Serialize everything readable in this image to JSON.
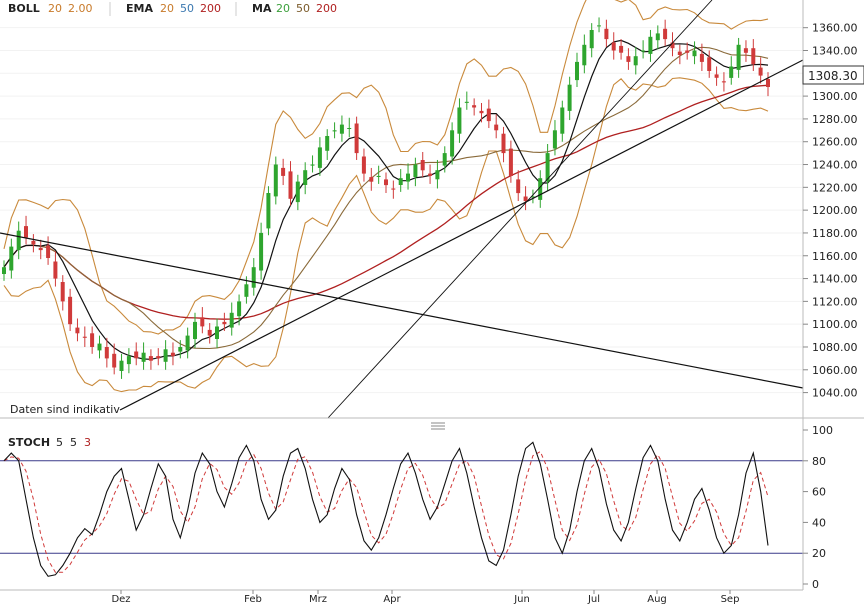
{
  "legend": {
    "boll": {
      "name": "BOLL",
      "p1": "20",
      "p2": "2.00",
      "color": "#c87a2a"
    },
    "ema": {
      "name": "EMA",
      "p1": "20",
      "p2": "50",
      "p3": "200",
      "c1": "#c87a2a",
      "c2": "#3b78b0",
      "c3": "#b02020"
    },
    "ma": {
      "name": "MA",
      "p1": "20",
      "p2": "50",
      "p3": "200",
      "c1": "#3ca03c",
      "c2": "#7a5a2a",
      "c3": "#b02020"
    },
    "stoch": {
      "name": "STOCH",
      "p1": "5",
      "p2": "5",
      "p3": "3",
      "c3": "#b02020"
    }
  },
  "note": "Daten sind indikativ",
  "price_label": "1308.30",
  "colors": {
    "up": "#2ea52e",
    "down": "#d03a3a",
    "boll": "#c98a3c",
    "ma20": "#111111",
    "ma50": "#8a6a3a",
    "ma200": "#b02020",
    "stoch_k": "#111111",
    "stoch_d": "#d03a3a",
    "hline": "#3a3a8a"
  },
  "chart_data": [
    {
      "type": "candlestick",
      "title": "",
      "y_ticks": [
        "1040.00",
        "1060.00",
        "1080.00",
        "1100.00",
        "1120.00",
        "1140.00",
        "1160.00",
        "1180.00",
        "1200.00",
        "1220.00",
        "1240.00",
        "1260.00",
        "1280.00",
        "1300.00",
        "1320.00",
        "1340.00",
        "1360.00"
      ],
      "ylim": [
        1030,
        1372
      ],
      "x_ticks": [
        "Dez",
        "Feb",
        "Mrz",
        "Apr",
        "Jun",
        "Jul",
        "Aug",
        "Sep"
      ],
      "close_series": [
        1150,
        1168,
        1182,
        1176,
        1170,
        1165,
        1158,
        1140,
        1120,
        1100,
        1092,
        1088,
        1080,
        1083,
        1070,
        1062,
        1068,
        1072,
        1070,
        1075,
        1068,
        1070,
        1078,
        1072,
        1080,
        1090,
        1102,
        1098,
        1090,
        1098,
        1100,
        1110,
        1120,
        1135,
        1150,
        1180,
        1215,
        1240,
        1230,
        1210,
        1225,
        1235,
        1240,
        1255,
        1265,
        1270,
        1275,
        1272,
        1250,
        1232,
        1225,
        1230,
        1222,
        1218,
        1228,
        1232,
        1240,
        1235,
        1230,
        1235,
        1250,
        1270,
        1290,
        1295,
        1290,
        1285,
        1278,
        1270,
        1250,
        1230,
        1215,
        1208,
        1212,
        1228,
        1250,
        1270,
        1290,
        1310,
        1330,
        1345,
        1358,
        1362,
        1350,
        1340,
        1338,
        1330,
        1335,
        1340,
        1352,
        1355,
        1350,
        1342,
        1336,
        1338,
        1340,
        1330,
        1322,
        1316,
        1312,
        1326,
        1345,
        1338,
        1328,
        1318,
        1308
      ],
      "last_price": 1308.3
    },
    {
      "type": "line",
      "title": "",
      "name_oscillator": "STOCH",
      "y_ticks": [
        "0",
        "20",
        "40",
        "60",
        "80",
        "100"
      ],
      "ylim": [
        0,
        100
      ],
      "hlines": [
        20,
        80
      ],
      "x_ticks": [
        "Dez",
        "Feb",
        "Mrz",
        "Apr",
        "Jun",
        "Jul",
        "Aug",
        "Sep"
      ],
      "k_series": [
        80,
        85,
        80,
        55,
        30,
        12,
        5,
        6,
        12,
        20,
        30,
        36,
        32,
        45,
        60,
        70,
        75,
        55,
        35,
        45,
        62,
        78,
        70,
        42,
        30,
        48,
        72,
        85,
        78,
        60,
        50,
        65,
        82,
        90,
        80,
        55,
        42,
        48,
        70,
        85,
        88,
        75,
        55,
        40,
        45,
        62,
        75,
        68,
        45,
        28,
        22,
        30,
        45,
        62,
        78,
        85,
        72,
        55,
        42,
        50,
        65,
        80,
        88,
        72,
        50,
        30,
        15,
        12,
        22,
        45,
        70,
        88,
        92,
        78,
        55,
        30,
        20,
        35,
        60,
        80,
        88,
        75,
        52,
        35,
        28,
        40,
        62,
        82,
        90,
        80,
        55,
        35,
        28,
        40,
        55,
        62,
        48,
        30,
        20,
        25,
        45,
        72,
        85,
        60,
        25
      ]
    }
  ]
}
